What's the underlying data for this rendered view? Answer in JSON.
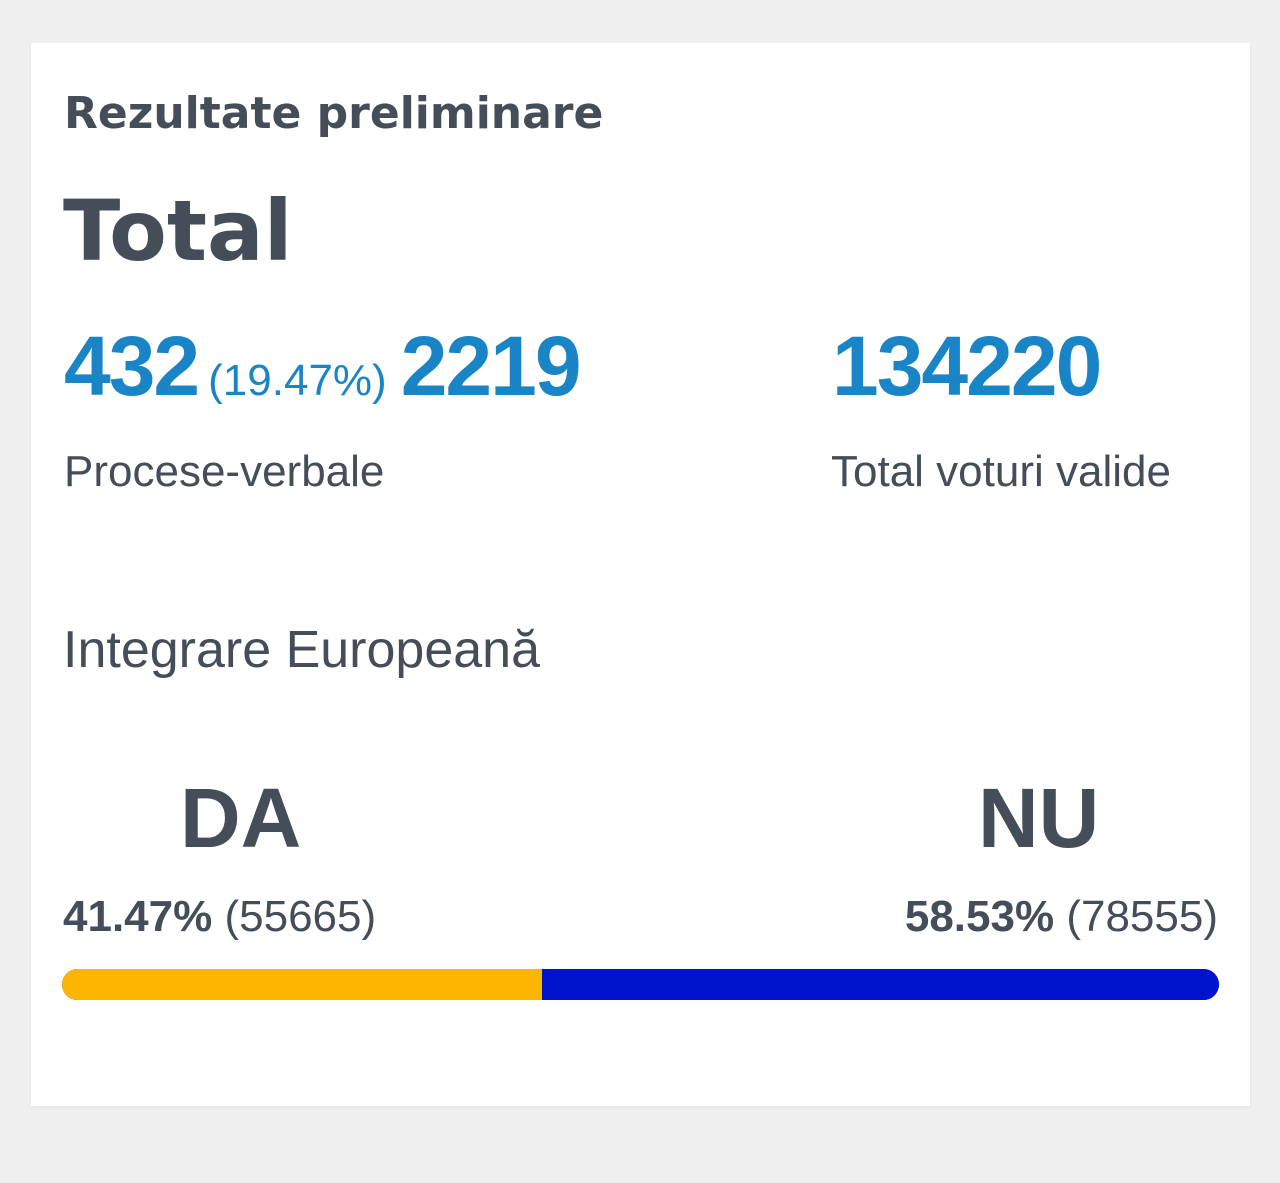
{
  "header": {
    "section_title": "Rezultate preliminare",
    "region_title": "Total"
  },
  "protocols": {
    "processed": "432",
    "processed_percent": "(19.47%)",
    "total": "2219",
    "label": "Procese-verbale"
  },
  "votes": {
    "valid_total": "134220",
    "label": "Total voturi valide"
  },
  "question": {
    "title": "Integrare Europeană"
  },
  "options": [
    {
      "label": "DA",
      "percent_text": "41.47%",
      "count_text": "(55665)",
      "share": 0.4147,
      "color": "#fdb500"
    },
    {
      "label": "NU",
      "percent_text": "58.53%",
      "count_text": "(78555)",
      "share": 0.5853,
      "color": "#0013cc"
    }
  ],
  "colors": {
    "accent_blue": "#1a85c6",
    "text_dark": "#454d59",
    "yes_color": "#fdb500",
    "no_color": "#0013cc"
  }
}
